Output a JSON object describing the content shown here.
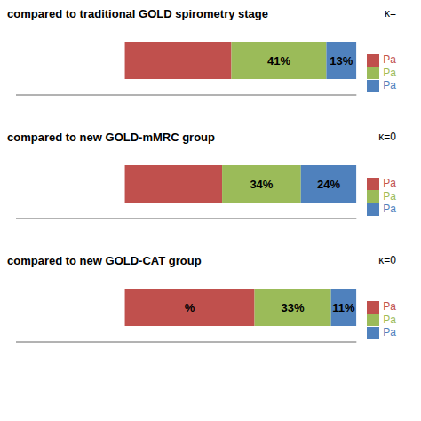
{
  "chart_data": [
    {
      "type": "bar",
      "orientation": "horizontal",
      "stacked": true,
      "title": "compared to traditional GOLD spirometry stage",
      "annotations": [
        "κ="
      ],
      "categories": [
        null
      ],
      "xlim": [
        -47,
        100
      ],
      "tick_labels": false,
      "legend": "right",
      "data_labels": true,
      "series": [
        {
          "name": "Pa",
          "color": "#c0504d",
          "values": [
            46
          ],
          "value_labels": [
            null
          ]
        },
        {
          "name": "Pa",
          "color": "#9bbb59",
          "values": [
            41
          ],
          "value_labels": [
            "41%"
          ]
        },
        {
          "name": "Pa",
          "color": "#4f81bd",
          "values": [
            13
          ],
          "value_labels": [
            "13%"
          ]
        }
      ]
    },
    {
      "type": "bar",
      "orientation": "horizontal",
      "stacked": true,
      "title": "compared to new GOLD-mMRC group",
      "annotations": [
        "κ=0"
      ],
      "categories": [
        null
      ],
      "xlim": [
        -47,
        100
      ],
      "tick_labels": false,
      "legend": "right",
      "data_labels": true,
      "series": [
        {
          "name": "Pa",
          "color": "#c0504d",
          "values": [
            42
          ],
          "value_labels": [
            null
          ]
        },
        {
          "name": "Pa",
          "color": "#9bbb59",
          "values": [
            34
          ],
          "value_labels": [
            "34%"
          ]
        },
        {
          "name": "Pa",
          "color": "#4f81bd",
          "values": [
            24
          ],
          "value_labels": [
            "24%"
          ]
        }
      ]
    },
    {
      "type": "bar",
      "orientation": "horizontal",
      "stacked": true,
      "title": "compared to new GOLD-CAT group",
      "annotations": [
        "κ=0"
      ],
      "categories": [
        null
      ],
      "xlim": [
        -47,
        100
      ],
      "tick_labels": false,
      "legend": "right",
      "data_labels": true,
      "series": [
        {
          "name": "Pa",
          "color": "#c0504d",
          "values": [
            56
          ],
          "value_labels": [
            "%"
          ]
        },
        {
          "name": "Pa",
          "color": "#9bbb59",
          "values": [
            33
          ],
          "value_labels": [
            "33%"
          ]
        },
        {
          "name": "Pa",
          "color": "#4f81bd",
          "values": [
            11
          ],
          "value_labels": [
            "11%"
          ]
        }
      ]
    }
  ]
}
